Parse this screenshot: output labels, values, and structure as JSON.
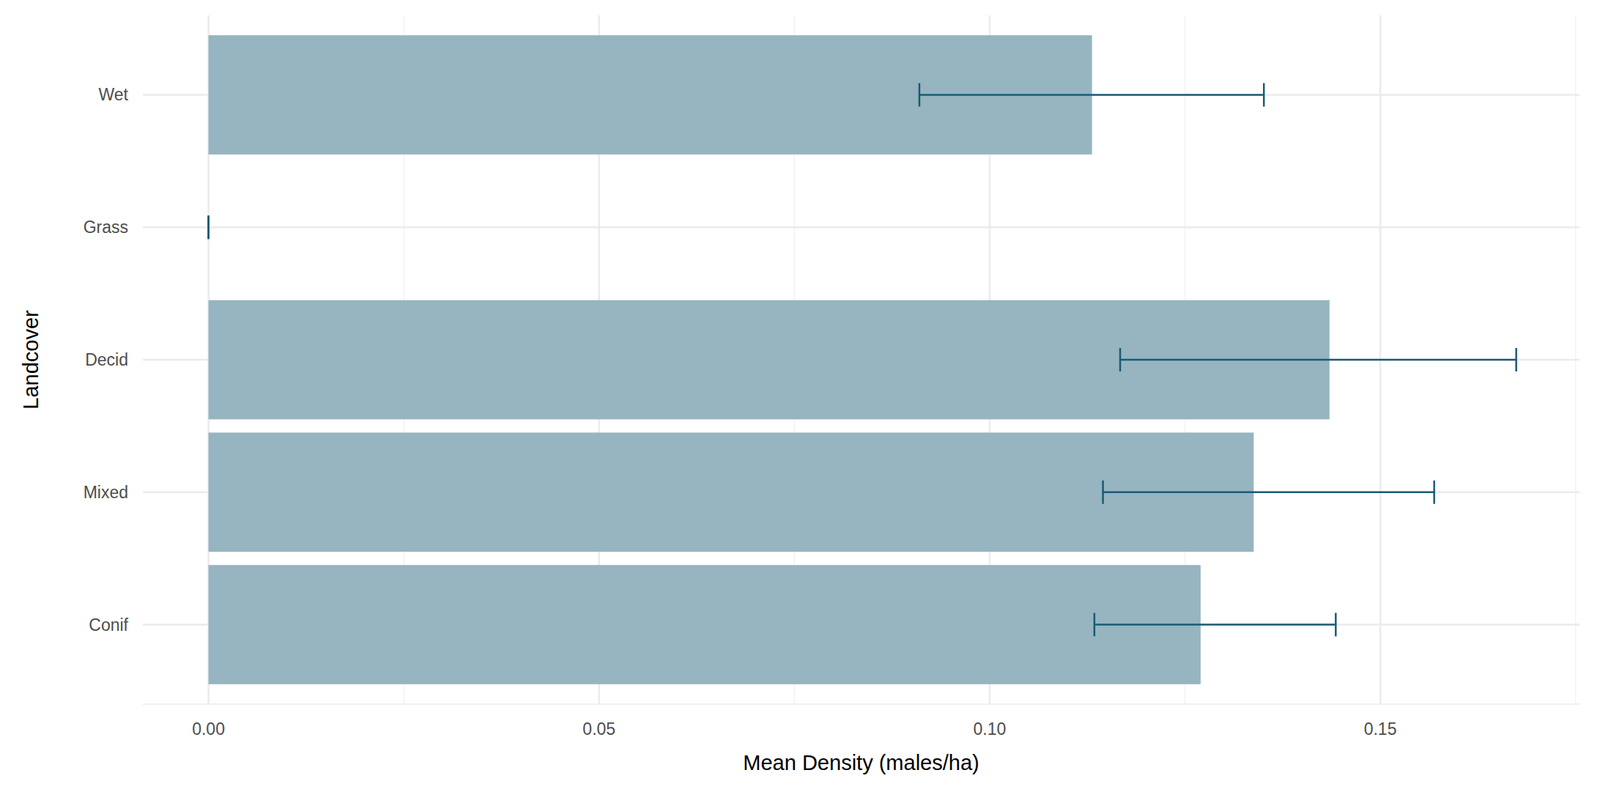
{
  "chart_data": {
    "type": "bar",
    "orientation": "horizontal",
    "x_label": "Mean Density (males/ha)",
    "y_label": "Landcover",
    "categories": [
      "Conif",
      "Mixed",
      "Decid",
      "Grass",
      "Wet"
    ],
    "values": [
      0.127,
      0.1338,
      0.1435,
      0,
      0.1131
    ],
    "error_lower": [
      0.1134,
      0.1145,
      0.1167,
      0,
      0.091
    ],
    "error_upper": [
      0.1443,
      0.1569,
      0.1674,
      0,
      0.1351
    ],
    "color": "#96b5c0",
    "xlim": [
      -0.0084,
      0.1755
    ],
    "xticks": [
      {
        "value": 0,
        "label": "0.00"
      },
      {
        "value": 0.05,
        "label": "0.05"
      },
      {
        "value": 0.1,
        "label": "0.10"
      },
      {
        "value": 0.15,
        "label": "0.15"
      }
    ],
    "grid": true
  }
}
